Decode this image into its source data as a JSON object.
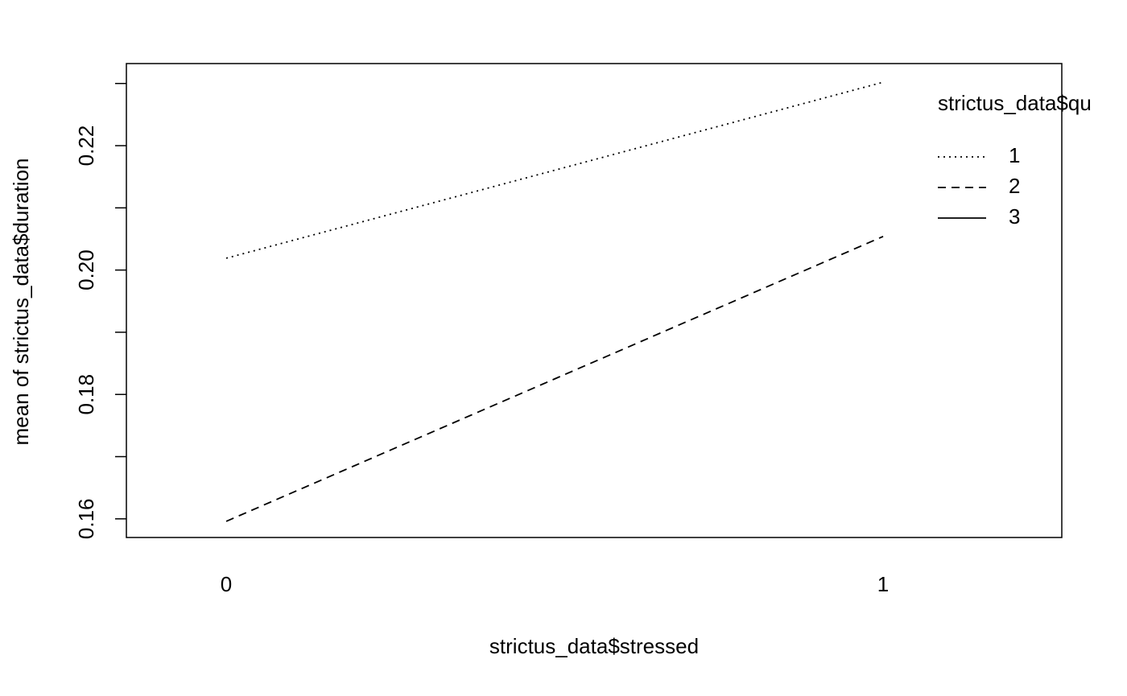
{
  "chart_data": {
    "type": "line",
    "xlabel": "strictus_data$stressed",
    "ylabel": "mean of  strictus_data$duration",
    "legend_title": "strictus_data$qu",
    "legend": "top-right-outside",
    "x": [
      0,
      1
    ],
    "xlim": [
      -0.152,
      1.272
    ],
    "xticks": [
      0,
      1
    ],
    "ylim": [
      0.157,
      0.2332
    ],
    "yticks": [
      {
        "value": 0.16,
        "label": "0.16"
      },
      {
        "value": 0.18,
        "label": "0.18"
      },
      {
        "value": 0.2,
        "label": "0.20"
      },
      {
        "value": 0.22,
        "label": "0.22"
      }
    ],
    "yminor_ticks": [
      0.17,
      0.19,
      0.21,
      0.23
    ],
    "series": [
      {
        "name": "1",
        "color": "#000000",
        "linetype": "dotted",
        "values": [
          0.2019,
          0.2302
        ]
      },
      {
        "name": "2",
        "color": "#000000",
        "linetype": "dashed",
        "values": [
          0.1596,
          0.2054
        ]
      },
      {
        "name": "3",
        "color": "#000000",
        "linetype": "solid",
        "values": [
          null,
          null
        ]
      }
    ]
  }
}
